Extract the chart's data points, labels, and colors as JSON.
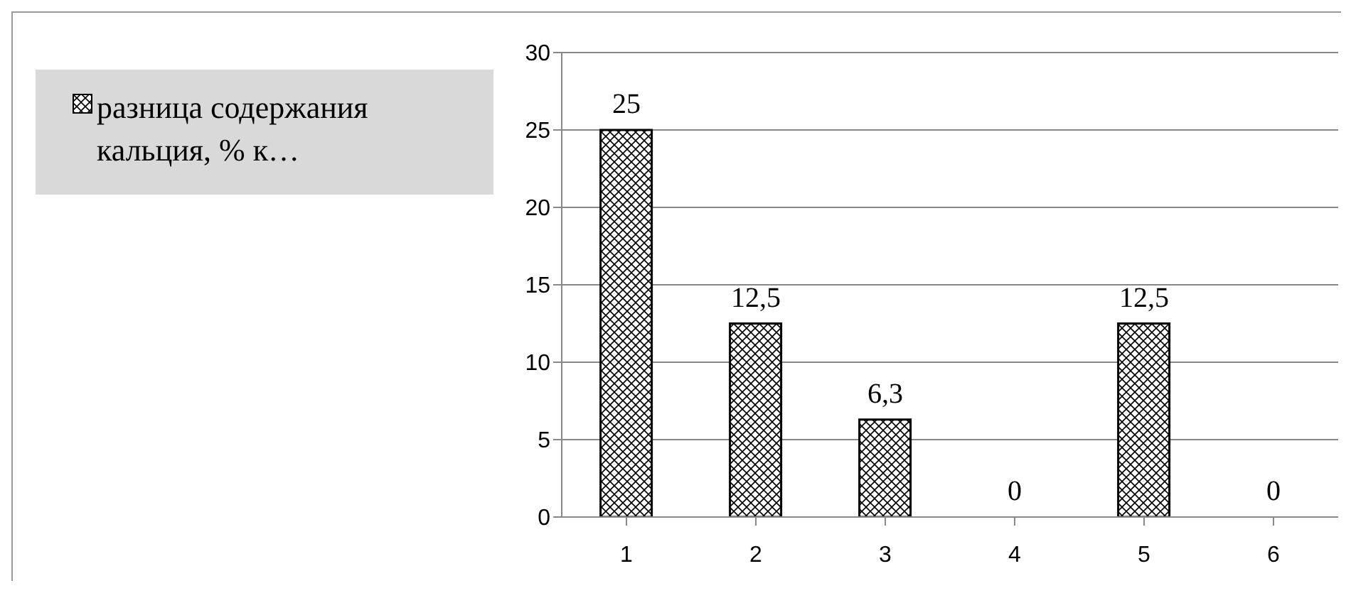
{
  "chart_data": {
    "type": "bar",
    "categories": [
      "1",
      "2",
      "3",
      "4",
      "5",
      "6"
    ],
    "series": [
      {
        "name": "разница содержания кальция, % к…",
        "color": "#000000",
        "values": [
          25,
          12.5,
          6.3,
          0,
          12.5,
          0
        ],
        "value_labels": [
          "25",
          "12,5",
          "6,3",
          "0",
          "12,5",
          "0"
        ]
      }
    ],
    "ylim": [
      0,
      30
    ],
    "yticks": [
      0,
      5,
      10,
      15,
      20,
      25,
      30
    ],
    "grid": "y",
    "legend": "left"
  }
}
